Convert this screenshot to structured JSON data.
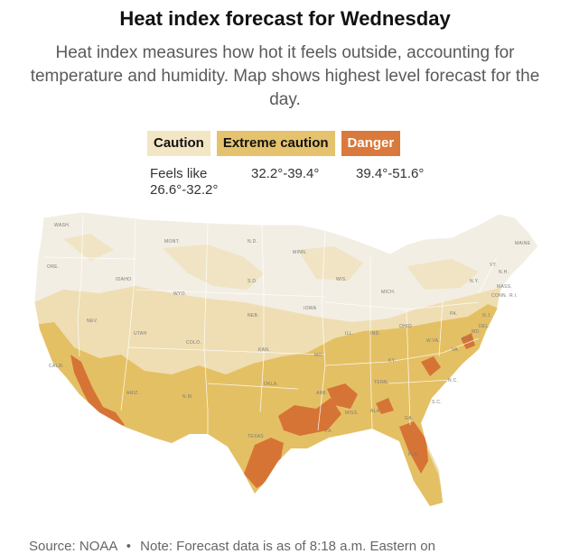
{
  "title": "Heat index forecast for Wednesday",
  "subtitle": "Heat index measures how hot it feels outside, accounting for temperature and humidity. Map shows highest level forecast for the day.",
  "legend": {
    "items": [
      {
        "label": "Caution",
        "range_line1": "Feels like",
        "range_line2": "26.6°-32.2°",
        "color": "#f3e6c4"
      },
      {
        "label": "Extreme caution",
        "range_line1": "32.2°-39.4°",
        "color": "#e5c26e"
      },
      {
        "label": "Danger",
        "range_line1": "39.4°-51.6°",
        "color": "#d97a3c"
      }
    ]
  },
  "map": {
    "base_color": "#f3eee4",
    "state_labels": [
      "WASH.",
      "ORE.",
      "CALIF.",
      "NEV.",
      "IDAHO",
      "MONT.",
      "WYO.",
      "UTAH",
      "ARIZ.",
      "COLO.",
      "N.M.",
      "N.D.",
      "S.D.",
      "NEB.",
      "KAN.",
      "OKLA.",
      "TEXAS",
      "MINN.",
      "IOWA",
      "MO.",
      "ARK.",
      "LA.",
      "WIS.",
      "ILL.",
      "MICH.",
      "IND.",
      "OHIO",
      "KY.",
      "TENN.",
      "MISS.",
      "ALA.",
      "GA.",
      "FLA.",
      "S.C.",
      "N.C.",
      "VA.",
      "W.VA.",
      "PA.",
      "N.Y.",
      "VT.",
      "N.H.",
      "MAINE",
      "MASS.",
      "CONN.",
      "R.I.",
      "N.J.",
      "DEL.",
      "MD.",
      "D.C."
    ]
  },
  "footer": {
    "source": "Source: NOAA",
    "note": "Note: Forecast data is as of 8:18 a.m. Eastern on"
  }
}
